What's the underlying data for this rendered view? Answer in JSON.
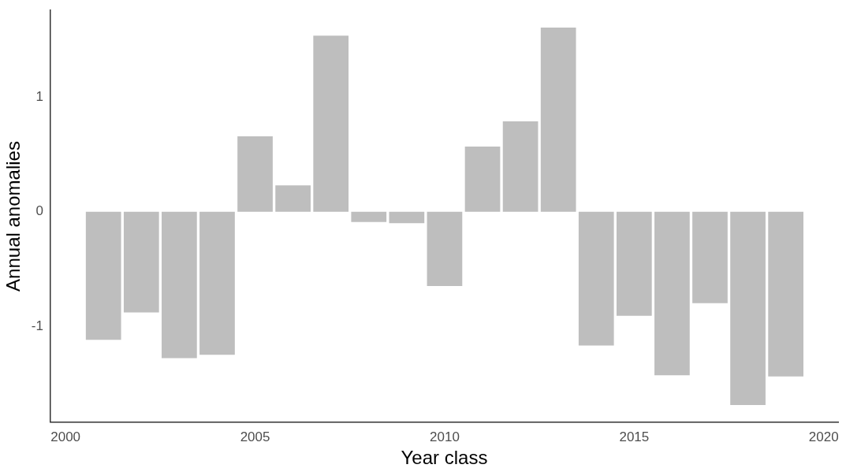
{
  "chart_data": {
    "type": "bar",
    "xlabel": "Year class",
    "ylabel": "Annual anomalies",
    "x": [
      2001,
      2002,
      2003,
      2004,
      2005,
      2006,
      2007,
      2008,
      2009,
      2010,
      2011,
      2012,
      2013,
      2014,
      2015,
      2016,
      2017,
      2018,
      2019
    ],
    "values": [
      -1.12,
      -0.88,
      -1.28,
      -1.25,
      0.66,
      0.23,
      1.54,
      -0.09,
      -0.1,
      -0.65,
      0.57,
      0.79,
      1.61,
      -1.17,
      -0.91,
      -1.43,
      -0.8,
      -1.69,
      -1.44
    ],
    "color": "#bebebe",
    "xlim": [
      1999.6,
      2020.38
    ],
    "xticks": [
      2000,
      2005,
      2010,
      2015,
      2020
    ],
    "ylim": [
      -1.84,
      1.76
    ],
    "yticks": [
      -1,
      0,
      1
    ],
    "grid": false,
    "legend": false
  }
}
